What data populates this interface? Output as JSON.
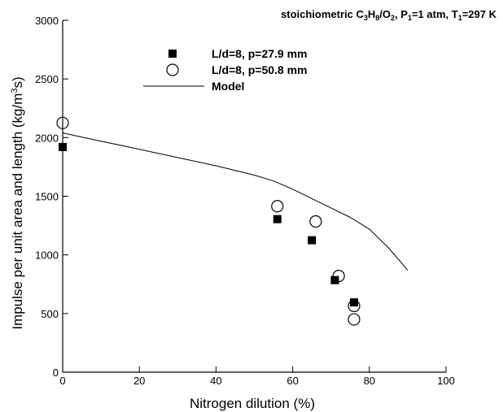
{
  "chart_data": {
    "type": "scatter",
    "title": "",
    "conditions": {
      "prefix": "stoichiometric C",
      "sub1": "3",
      "mid1": "H",
      "sub2": "8",
      "mid2": "/O",
      "sub3": "2",
      "mid3": ", P",
      "sub4": "1",
      "mid4": "=1 atm, T",
      "sub5": "1",
      "suffix": "=297 K"
    },
    "xlabel": "Nitrogen dilution (%)",
    "ylabel": {
      "main": "Impulse per unit area and length (kg/m",
      "sup": "3",
      "end": "s)"
    },
    "xlim": [
      0,
      100
    ],
    "ylim": [
      0,
      3000
    ],
    "xticks": [
      0,
      20,
      40,
      60,
      80,
      100
    ],
    "yticks": [
      0,
      500,
      1000,
      1500,
      2000,
      2500,
      3000
    ],
    "grid": false,
    "legend_position": "top-center",
    "series": [
      {
        "name": "L/d=8, p=27.9 mm",
        "marker": "filled-square",
        "color": "#000000",
        "points": [
          [
            0,
            1920
          ],
          [
            56,
            1305
          ],
          [
            65,
            1125
          ],
          [
            71,
            785
          ],
          [
            76,
            595
          ]
        ]
      },
      {
        "name": "L/d=8, p=50.8 mm",
        "marker": "open-circle",
        "color": "#000000",
        "points": [
          [
            0,
            2125
          ],
          [
            56,
            1415
          ],
          [
            66,
            1285
          ],
          [
            72,
            820
          ],
          [
            76,
            565
          ],
          [
            76,
            450
          ]
        ]
      },
      {
        "name": "Model",
        "marker": "line",
        "color": "#000000",
        "points": [
          [
            0,
            2040
          ],
          [
            10,
            1970
          ],
          [
            20,
            1900
          ],
          [
            30,
            1830
          ],
          [
            40,
            1760
          ],
          [
            50,
            1680
          ],
          [
            55,
            1630
          ],
          [
            60,
            1560
          ],
          [
            65,
            1480
          ],
          [
            70,
            1400
          ],
          [
            75,
            1320
          ],
          [
            80,
            1220
          ],
          [
            85,
            1060
          ],
          [
            90,
            870
          ]
        ]
      }
    ]
  }
}
